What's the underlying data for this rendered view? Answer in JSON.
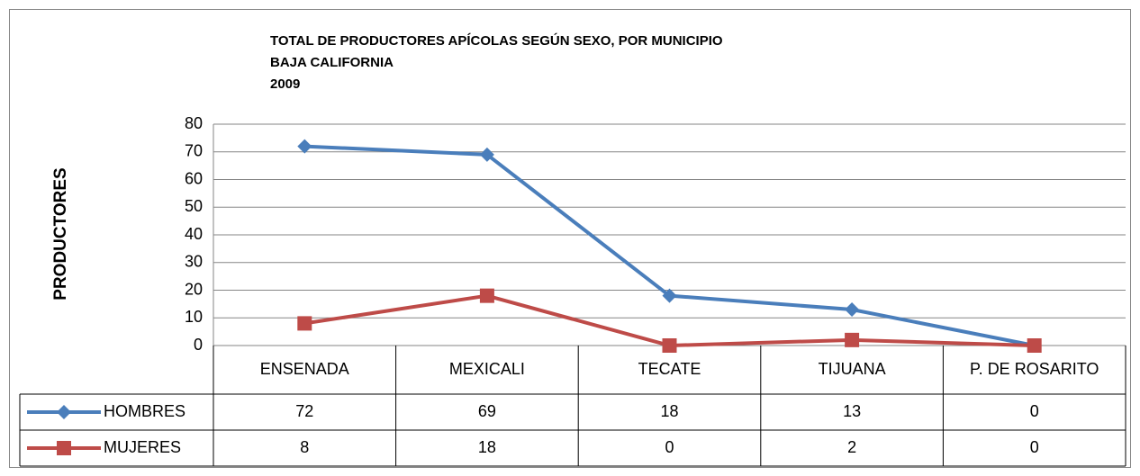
{
  "chart_data": {
    "type": "line",
    "title": [
      "TOTAL DE PRODUCTORES APÍCOLAS SEGÚN SEXO, POR MUNICIPIO",
      "BAJA CALIFORNIA",
      "2009"
    ],
    "y_label": "PRODUCTORES",
    "categories": [
      "ENSENADA",
      "MEXICALI",
      "TECATE",
      "TIJUANA",
      "P. DE ROSARITO"
    ],
    "series": [
      {
        "name": "HOMBRES",
        "color": "#4a7ebb",
        "marker": "diamond",
        "values": [
          72,
          69,
          18,
          13,
          0
        ]
      },
      {
        "name": "MUJERES",
        "color": "#be4b48",
        "marker": "square",
        "values": [
          8,
          18,
          0,
          2,
          0
        ]
      }
    ],
    "ylim": [
      0,
      80
    ],
    "yticks": [
      0,
      10,
      20,
      30,
      40,
      50,
      60,
      70,
      80
    ],
    "grid": true,
    "data_table": true
  }
}
